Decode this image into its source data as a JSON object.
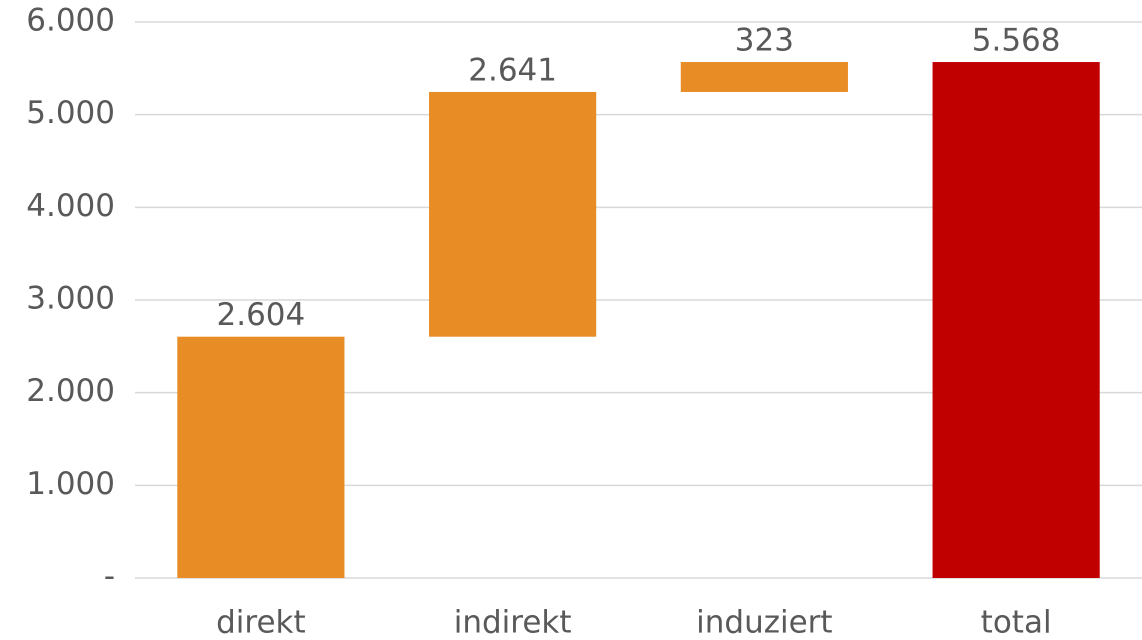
{
  "chart_data": {
    "type": "waterfall",
    "categories": [
      "direkt",
      "indirekt",
      "induziert",
      "total"
    ],
    "values": [
      2604,
      2641,
      323,
      5568
    ],
    "value_labels": [
      "2.604",
      "2.641",
      "323",
      "5.568"
    ],
    "is_total": [
      false,
      false,
      false,
      true
    ],
    "colors": [
      "#e88c26",
      "#e88c26",
      "#e88c26",
      "#c00000"
    ],
    "ylim": [
      0,
      6000
    ],
    "yticks": [
      {
        "value": 0,
        "label": "-"
      },
      {
        "value": 1000,
        "label": "1.000"
      },
      {
        "value": 2000,
        "label": "2.000"
      },
      {
        "value": 3000,
        "label": "3.000"
      },
      {
        "value": 4000,
        "label": "4.000"
      },
      {
        "value": 5000,
        "label": "5.000"
      },
      {
        "value": 6000,
        "label": "6.000"
      }
    ],
    "grid": true
  }
}
